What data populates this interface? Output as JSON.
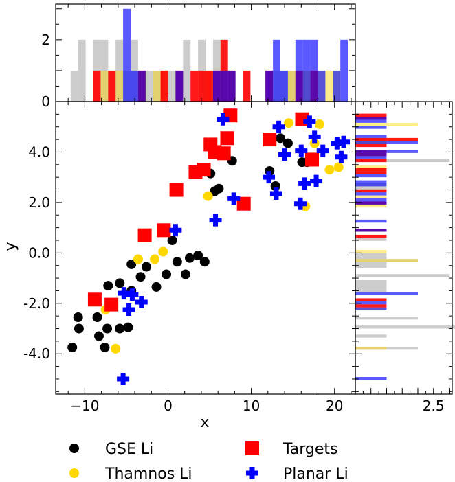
{
  "chart_data": {
    "type": "scatter",
    "xlabel": "x",
    "ylabel": "y",
    "xlim": [
      -13.5,
      22.5
    ],
    "ylim": [
      -5.6,
      6.0
    ],
    "x_ticks": [
      -10,
      0,
      10,
      20
    ],
    "x_tick_labels": [
      "−10",
      "0",
      "10",
      "20"
    ],
    "y_ticks": [
      -4,
      -2,
      0,
      2,
      4
    ],
    "y_tick_labels": [
      "-4.0",
      "-2.0",
      "0.0",
      "2.0",
      "4.0"
    ],
    "top_hist": {
      "ylim": [
        0,
        3.15
      ],
      "ticks": [
        0,
        2
      ],
      "tick_labels": [
        "0",
        "2"
      ],
      "bin_width": 0.9
    },
    "right_hist": {
      "xlim": [
        0,
        3.1
      ],
      "ticks": [
        2.5
      ],
      "tick_labels": [
        "2.5"
      ],
      "bin_width": 0.12
    },
    "series": [
      {
        "name": "GSE Li",
        "color": "#000000",
        "marker": "circle",
        "points": [
          [
            -11.5,
            -3.75
          ],
          [
            -10.8,
            -2.55
          ],
          [
            -10.7,
            -3.0
          ],
          [
            -8.5,
            -2.55
          ],
          [
            -8.3,
            -3.3
          ],
          [
            -7.6,
            -3.75
          ],
          [
            -7.3,
            -3.0
          ],
          [
            -7.2,
            -1.3
          ],
          [
            -5.8,
            -1.2
          ],
          [
            -5.8,
            -3.0
          ],
          [
            -4.8,
            -2.95
          ],
          [
            -4.4,
            -0.45
          ],
          [
            -4.4,
            -1.5
          ],
          [
            -3.3,
            -0.95
          ],
          [
            -2.6,
            -0.55
          ],
          [
            -1.4,
            -1.35
          ],
          [
            -0.2,
            -0.85
          ],
          [
            0.5,
            0.5
          ],
          [
            1.1,
            -0.35
          ],
          [
            2.1,
            -0.85
          ],
          [
            2.6,
            -0.2
          ],
          [
            3.6,
            -0.1
          ],
          [
            4.4,
            -0.35
          ],
          [
            5.1,
            3.15
          ],
          [
            5.6,
            2.45
          ],
          [
            6.1,
            2.55
          ],
          [
            7.7,
            3.65
          ],
          [
            12.2,
            3.25
          ],
          [
            12.9,
            2.65
          ],
          [
            13.5,
            4.55
          ],
          [
            14.4,
            4.35
          ],
          [
            16.1,
            3.6
          ],
          [
            16.7,
            3.6
          ]
        ]
      },
      {
        "name": "Thamnos Li",
        "color": "#FFD700",
        "marker": "circle",
        "points": [
          [
            -7.5,
            -2.25
          ],
          [
            -6.3,
            -3.8
          ],
          [
            -3.6,
            -0.25
          ],
          [
            -1.6,
            -0.25
          ],
          [
            -0.6,
            0.05
          ],
          [
            4.8,
            2.25
          ],
          [
            14.5,
            5.15
          ],
          [
            16.5,
            1.85
          ],
          [
            17.6,
            4.35
          ],
          [
            18.2,
            5.1
          ],
          [
            19.4,
            3.3
          ],
          [
            20.5,
            3.4
          ]
        ]
      },
      {
        "name": "Targets",
        "color": "#FF0000",
        "marker": "square",
        "points": [
          [
            -8.8,
            -1.85
          ],
          [
            -6.8,
            -2.05
          ],
          [
            -2.8,
            0.7
          ],
          [
            -0.5,
            0.9
          ],
          [
            1.0,
            2.5
          ],
          [
            3.3,
            3.2
          ],
          [
            4.3,
            3.3
          ],
          [
            5.1,
            4.3
          ],
          [
            5.6,
            4.0
          ],
          [
            6.7,
            3.95
          ],
          [
            7.1,
            4.55
          ],
          [
            7.5,
            5.45
          ],
          [
            9.1,
            1.95
          ],
          [
            12.2,
            4.5
          ],
          [
            16.1,
            5.3
          ],
          [
            17.3,
            3.7
          ]
        ]
      },
      {
        "name": "Planar Li",
        "color": "#0000FF",
        "marker": "plus",
        "points": [
          [
            -5.3,
            -1.6
          ],
          [
            -4.3,
            -1.65
          ],
          [
            -4.7,
            -2.25
          ],
          [
            -3.2,
            -1.95
          ],
          [
            -5.4,
            -5.0
          ],
          [
            0.9,
            0.9
          ],
          [
            5.7,
            1.3
          ],
          [
            6.6,
            5.3
          ],
          [
            7.9,
            2.15
          ],
          [
            12.1,
            3.0
          ],
          [
            13.0,
            2.35
          ],
          [
            13.3,
            5.0
          ],
          [
            14.0,
            3.9
          ],
          [
            15.9,
            1.95
          ],
          [
            16.0,
            4.05
          ],
          [
            16.4,
            2.75
          ],
          [
            17.0,
            5.2
          ],
          [
            17.8,
            2.85
          ],
          [
            17.6,
            4.6
          ],
          [
            18.6,
            4.05
          ],
          [
            20.3,
            4.35
          ],
          [
            20.8,
            3.8
          ],
          [
            21.1,
            4.4
          ]
        ]
      }
    ],
    "legend": {
      "placement": "bottom",
      "entries": [
        "GSE Li",
        "Targets",
        "Thamnos Li",
        "Planar Li"
      ]
    }
  }
}
